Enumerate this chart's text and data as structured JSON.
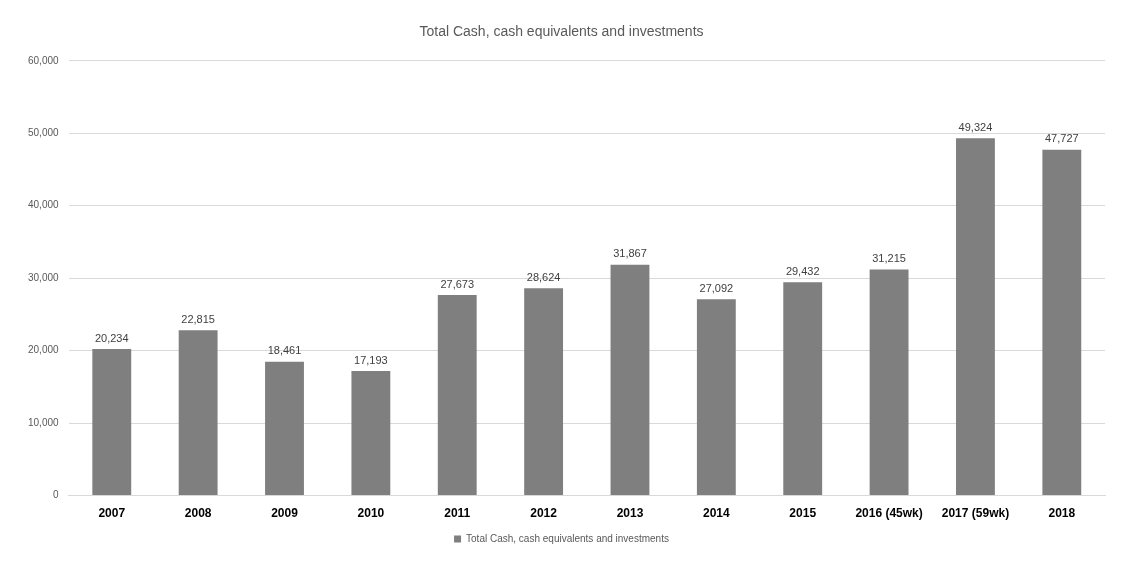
{
  "chart_data": {
    "type": "bar",
    "title": "Total Cash, cash equivalents and investments",
    "categories": [
      "2007",
      "2008",
      "2009",
      "2010",
      "2011",
      "2012",
      "2013",
      "2014",
      "2015",
      "2016 (45wk)",
      "2017 (59wk)",
      "2018"
    ],
    "series": [
      {
        "name": "Total Cash, cash equivalents and investments",
        "color": "#7f7f7f",
        "values": [
          20234,
          22815,
          18461,
          17193,
          27673,
          28624,
          31867,
          27092,
          29432,
          31215,
          49324,
          47727
        ],
        "value_labels": [
          "20,234",
          "22,815",
          "18,461",
          "17,193",
          "27,673",
          "28,624",
          "31,867",
          "27,092",
          "29,432",
          "31,215",
          "49,324",
          "47,727"
        ]
      }
    ],
    "ylim": [
      0,
      60000
    ],
    "yticks": [
      0,
      {
        "value": 10000,
        "label": "10,000"
      },
      {
        "value": 20000,
        "label": "20,000"
      },
      {
        "value": 30000,
        "label": "30,000"
      },
      {
        "value": 40000,
        "label": "40,000"
      },
      {
        "value": 50000,
        "label": "50,000"
      },
      {
        "value": 60000,
        "label": "60,000"
      }
    ],
    "grid": "y",
    "legend": "bottom"
  }
}
